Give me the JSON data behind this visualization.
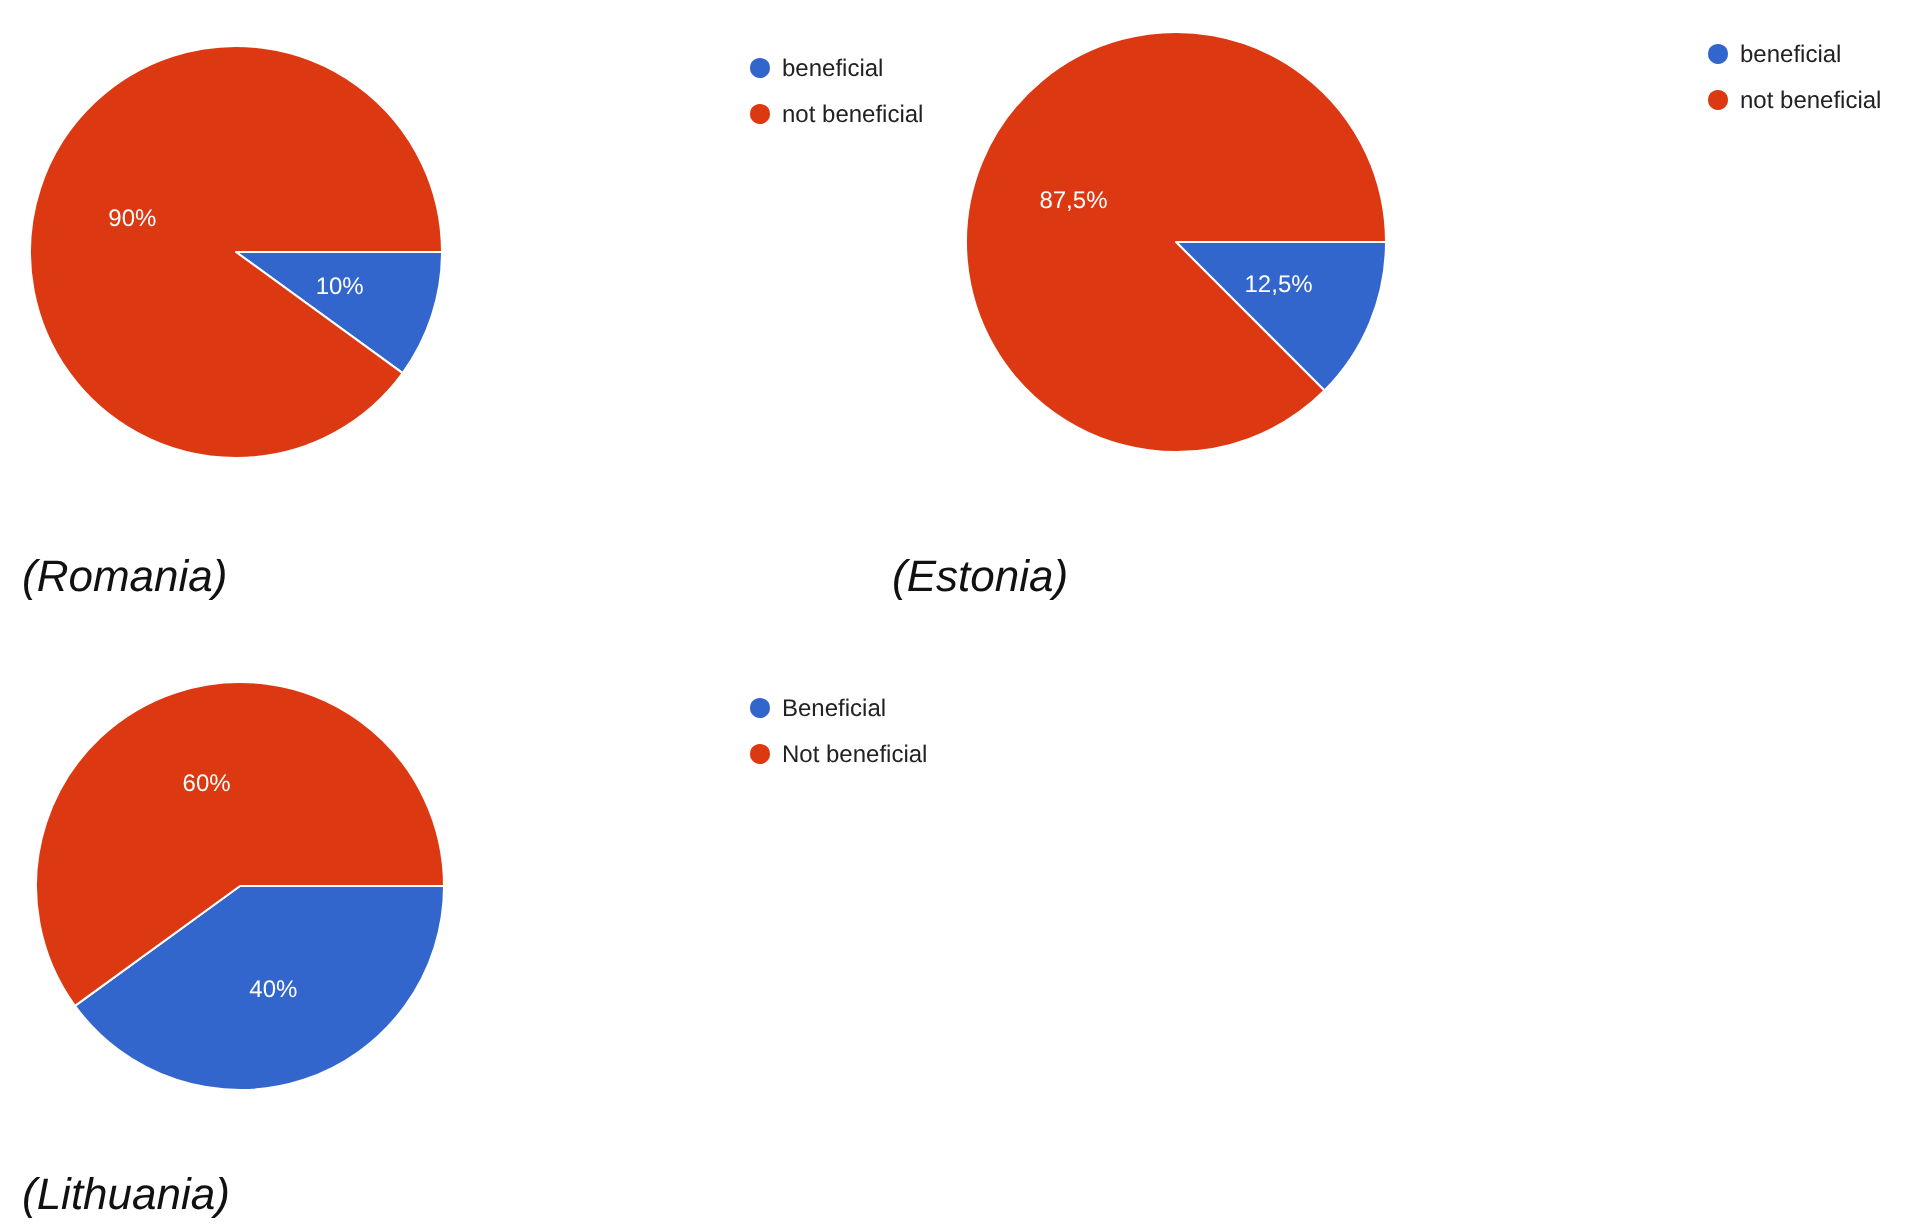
{
  "chart_data": [
    {
      "type": "pie",
      "title": "(Romania)",
      "categories": [
        "beneficial",
        "not beneficial"
      ],
      "values": [
        10,
        90
      ],
      "colors": [
        "#3366cc",
        "#dc3912"
      ],
      "value_labels": [
        "10%",
        "90%"
      ],
      "legend": "top right"
    },
    {
      "type": "pie",
      "title": "(Estonia)",
      "categories": [
        "beneficial",
        "not beneficial"
      ],
      "values": [
        12.5,
        87.5
      ],
      "colors": [
        "#3366cc",
        "#dc3912"
      ],
      "value_labels": [
        "12,5%",
        "87,5%"
      ],
      "legend": "top right"
    },
    {
      "type": "pie",
      "title": "(Lithuania)",
      "categories": [
        "Beneficial",
        "Not beneficial"
      ],
      "values": [
        40,
        60
      ],
      "colors": [
        "#3366cc",
        "#dc3912"
      ],
      "value_labels": [
        "40%",
        "60%"
      ],
      "legend": "top right"
    }
  ]
}
